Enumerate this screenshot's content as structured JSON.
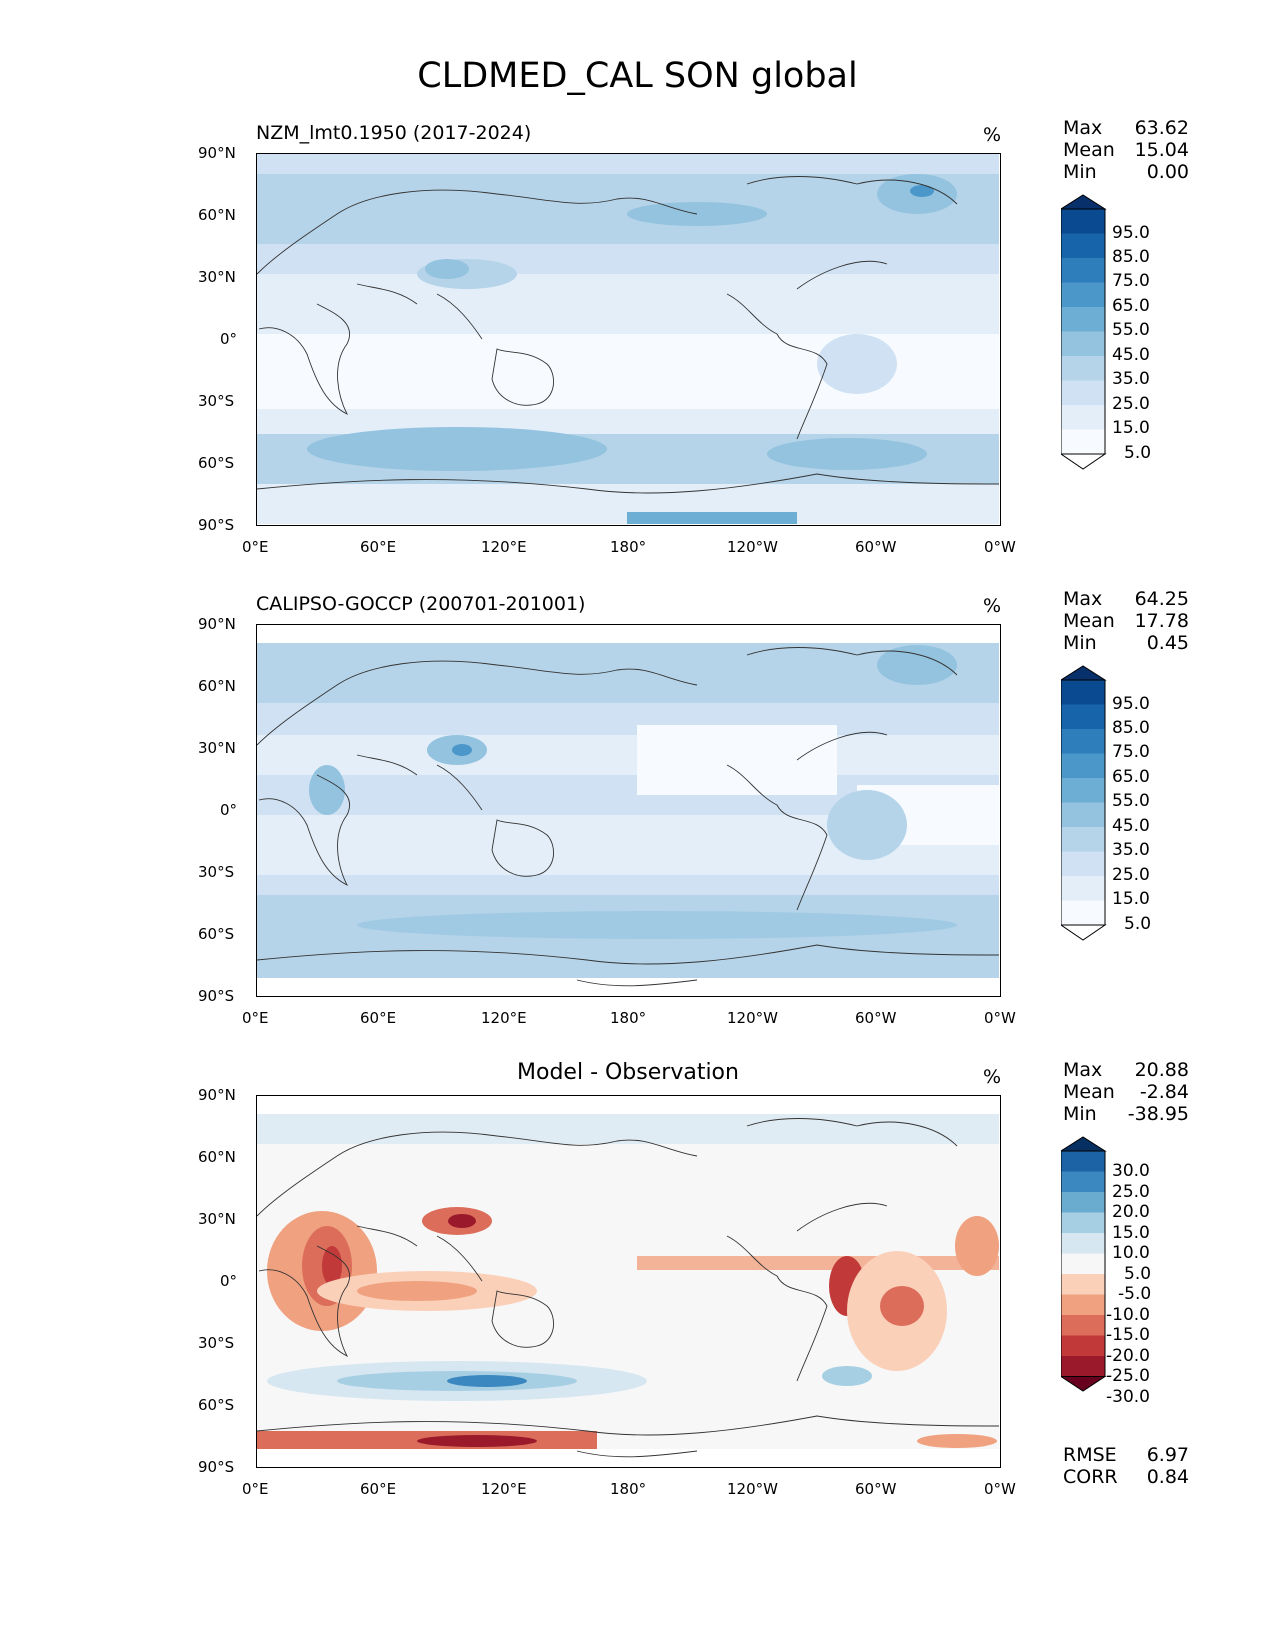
{
  "figure": {
    "title": "CLDMED_CAL SON global"
  },
  "ticks": {
    "lat": [
      "90°N",
      "60°N",
      "30°N",
      "0°",
      "30°S",
      "60°S",
      "90°S"
    ],
    "lon": [
      "0°E",
      "60°E",
      "120°E",
      "180°",
      "120°W",
      "60°W",
      "0°W"
    ]
  },
  "panels": [
    {
      "id": "model",
      "title": "NZM_lmt0.1950 (2017-2024)",
      "units": "%",
      "stats": [
        {
          "label": "Max",
          "value": "63.62"
        },
        {
          "label": "Mean",
          "value": "15.04"
        },
        {
          "label": "Min",
          "value": "0.00"
        }
      ],
      "colorbar": [
        "95.0",
        "85.0",
        "75.0",
        "65.0",
        "55.0",
        "45.0",
        "35.0",
        "25.0",
        "15.0",
        "5.0"
      ]
    },
    {
      "id": "obs",
      "title": "CALIPSO-GOCCP (200701-201001)",
      "units": "%",
      "stats": [
        {
          "label": "Max",
          "value": "64.25"
        },
        {
          "label": "Mean",
          "value": "17.78"
        },
        {
          "label": "Min",
          "value": "0.45"
        }
      ],
      "colorbar": [
        "95.0",
        "85.0",
        "75.0",
        "65.0",
        "55.0",
        "45.0",
        "35.0",
        "25.0",
        "15.0",
        "5.0"
      ]
    },
    {
      "id": "diff",
      "title": "Model - Observation",
      "units": "%",
      "stats": [
        {
          "label": "Max",
          "value": "20.88"
        },
        {
          "label": "Mean",
          "value": "-2.84"
        },
        {
          "label": "Min",
          "value": "-38.95"
        }
      ],
      "colorbar": [
        "30.0",
        "25.0",
        "20.0",
        "15.0",
        "10.0",
        "5.0",
        "-5.0",
        "-10.0",
        "-15.0",
        "-20.0",
        "-25.0",
        "-30.0"
      ],
      "metrics": [
        {
          "label": "RMSE",
          "value": "6.97"
        },
        {
          "label": "CORR",
          "value": "0.84"
        }
      ]
    }
  ],
  "colors": {
    "blues": [
      "#f7fbff",
      "#e3eef9",
      "#cfe1f2",
      "#b5d4e9",
      "#93c3df",
      "#6daed5",
      "#4b97c9",
      "#2f7ebc",
      "#1864aa",
      "#0a4a90",
      "#08306b"
    ],
    "rdbu": [
      "#67001f",
      "#9a1a2b",
      "#c13939",
      "#dc6d5a",
      "#f0a180",
      "#fbd0b9",
      "#f7f7f7",
      "#d6e7f1",
      "#a7cfe4",
      "#6aacd0",
      "#3a88bf",
      "#1b63a5",
      "#053061"
    ]
  }
}
